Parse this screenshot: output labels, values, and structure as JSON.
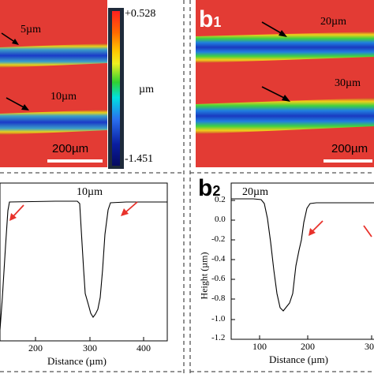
{
  "panel_a1": {
    "labels": {
      "top_width": "5µm",
      "bottom_width": "10µm",
      "scale_bar": "200µm"
    },
    "colorbar": {
      "max": "+0.528",
      "min": "-1.451",
      "unit": "µm"
    }
  },
  "panel_b1": {
    "tag": "b",
    "tag_sub": "1",
    "labels": {
      "top_width": "20µm",
      "bottom_width": "30µm",
      "scale_bar": "200µm"
    }
  },
  "panel_a2": {
    "annotation": "10µm",
    "x_axis": {
      "label": "Distance (µm)",
      "ticks": [
        "200",
        "300",
        "400"
      ]
    }
  },
  "panel_b2": {
    "tag": "b",
    "tag_sub": "2",
    "annotation": "20µm",
    "x_axis": {
      "label": "Distance (µm)",
      "ticks": [
        "100",
        "200",
        "30"
      ]
    },
    "y_axis": {
      "label": "Height (µm)",
      "ticks": [
        "0.2",
        "0.0",
        "-0.2",
        "-0.4",
        "-0.6",
        "-0.8",
        "-1.0",
        "-1.2"
      ]
    }
  },
  "colors": {
    "background_red": "#e33b34",
    "arrow_red": "#e8322b",
    "dash": "#555555"
  }
}
